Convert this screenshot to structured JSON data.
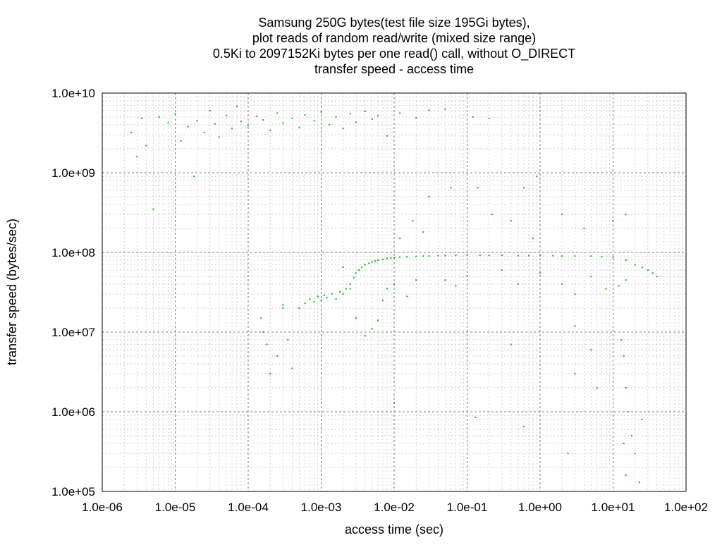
{
  "chart_data": {
    "type": "scatter",
    "title_lines": [
      "Samsung 250G bytes(test file size 195Gi bytes),",
      "plot reads of random read/write (mixed size range)",
      "0.5Ki to 2097152Ki bytes per one read() call, without O_DIRECT",
      "transfer speed - access time"
    ],
    "xlabel": "access time (sec)",
    "ylabel": "transfer speed (bytes/sec)",
    "x_scale": "log",
    "y_scale": "log",
    "xlim": [
      1e-06,
      100
    ],
    "ylim": [
      100000.0,
      10000000000.0
    ],
    "x_ticks": [
      {
        "value": 1e-06,
        "label": "1.0e-06"
      },
      {
        "value": 1e-05,
        "label": "1.0e-05"
      },
      {
        "value": 0.0001,
        "label": "1.0e-04"
      },
      {
        "value": 0.001,
        "label": "1.0e-03"
      },
      {
        "value": 0.01,
        "label": "1.0e-02"
      },
      {
        "value": 0.1,
        "label": "1.0e-01"
      },
      {
        "value": 1,
        "label": "1.0e+00"
      },
      {
        "value": 10,
        "label": "1.0e+01"
      },
      {
        "value": 100,
        "label": "1.0e+02"
      }
    ],
    "y_ticks": [
      {
        "value": 100000.0,
        "label": "1.0e+05"
      },
      {
        "value": 1000000.0,
        "label": "1.0e+06"
      },
      {
        "value": 10000000.0,
        "label": "1.0e+07"
      },
      {
        "value": 100000000.0,
        "label": "1.0e+08"
      },
      {
        "value": 1000000000.0,
        "label": "1.0e+09"
      },
      {
        "value": 10000000000.0,
        "label": "1.0e+10"
      }
    ],
    "grid": true,
    "minor_grid": true,
    "legend": "none",
    "series": [
      {
        "color": "#00c000",
        "marker": "dot",
        "points": [
          [
            2.5e-06,
            3200000000.0
          ],
          [
            3e-06,
            1600000000.0
          ],
          [
            3.5e-06,
            4800000000.0
          ],
          [
            4e-06,
            2200000000.0
          ],
          [
            5e-06,
            350000000.0
          ],
          [
            6e-06,
            5000000000.0
          ],
          [
            8e-06,
            4200000000.0
          ],
          [
            1e-05,
            5500000000.0
          ],
          [
            1.2e-05,
            2500000000.0
          ],
          [
            1.5e-05,
            3800000000.0
          ],
          [
            1.8e-05,
            900000000.0
          ],
          [
            2e-05,
            4500000000.0
          ],
          [
            2.5e-05,
            3200000000.0
          ],
          [
            3e-05,
            6000000000.0
          ],
          [
            3.5e-05,
            4100000000.0
          ],
          [
            4e-05,
            2800000000.0
          ],
          [
            5e-05,
            5200000000.0
          ],
          [
            6e-05,
            3600000000.0
          ],
          [
            7e-05,
            6800000000.0
          ],
          [
            8e-05,
            4400000000.0
          ],
          [
            0.0001,
            3900000000.0
          ],
          [
            0.00013,
            5100000000.0
          ],
          [
            0.00016,
            4600000000.0
          ],
          [
            0.0002,
            3400000000.0
          ],
          [
            0.00025,
            5600000000.0
          ],
          [
            0.0003,
            4200000000.0
          ],
          [
            0.0004,
            4800000000.0
          ],
          [
            0.0005,
            3700000000.0
          ],
          [
            0.0006,
            5300000000.0
          ],
          [
            0.0008,
            4500000000.0
          ],
          [
            0.001,
            5800000000.0
          ],
          [
            0.0013,
            4000000000.0
          ],
          [
            0.0016,
            5000000000.0
          ],
          [
            0.002,
            3600000000.0
          ],
          [
            0.0025,
            5500000000.0
          ],
          [
            0.003,
            4300000000.0
          ],
          [
            0.004,
            5900000000.0
          ],
          [
            0.005,
            4700000000.0
          ],
          [
            0.006,
            5200000000.0
          ],
          [
            0.008,
            2900000000.0
          ],
          [
            0.012,
            5600000000.0
          ],
          [
            0.02,
            4900000000.0
          ],
          [
            0.03,
            6100000000.0
          ],
          [
            0.05,
            6300000000.0
          ],
          [
            0.12,
            5000000000.0
          ],
          [
            0.2,
            4800000000.0
          ],
          [
            0.00015,
            15000000.0
          ],
          [
            0.00018,
            7000000.0
          ],
          [
            0.0002,
            3000000.0
          ],
          [
            0.00016,
            10000000.0
          ],
          [
            0.00025,
            5000000.0
          ],
          [
            0.0003,
            20000000.0
          ],
          [
            0.00035,
            8000000.0
          ],
          [
            0.0004,
            3500000.0
          ],
          [
            0.0003,
            22000000.0
          ],
          [
            0.0005,
            20000000.0
          ],
          [
            0.0006,
            23000000.0
          ],
          [
            0.0007,
            26000000.0
          ],
          [
            0.0008,
            24000000.0
          ],
          [
            0.0009,
            28000000.0
          ],
          [
            0.001,
            25000000.0
          ],
          [
            0.0011,
            29000000.0
          ],
          [
            0.0012,
            27000000.0
          ],
          [
            0.0014,
            30000000.0
          ],
          [
            0.0016,
            26000000.0
          ],
          [
            0.0018,
            32000000.0
          ],
          [
            0.002,
            30000000.0
          ],
          [
            0.0022,
            35000000.0
          ],
          [
            0.0025,
            40000000.0
          ],
          [
            0.0028,
            48000000.0
          ],
          [
            0.003,
            55000000.0
          ],
          [
            0.0033,
            60000000.0
          ],
          [
            0.0036,
            65000000.0
          ],
          [
            0.004,
            70000000.0
          ],
          [
            0.0045,
            73000000.0
          ],
          [
            0.005,
            76000000.0
          ],
          [
            0.0055,
            78000000.0
          ],
          [
            0.006,
            80000000.0
          ],
          [
            0.007,
            82000000.0
          ],
          [
            0.008,
            84000000.0
          ],
          [
            0.009,
            85000000.0
          ],
          [
            0.01,
            86000000.0
          ],
          [
            0.012,
            87000000.0
          ],
          [
            0.015,
            88000000.0
          ],
          [
            0.02,
            89000000.0
          ],
          [
            0.025,
            90000000.0
          ],
          [
            0.03,
            90000000.0
          ],
          [
            0.04,
            91000000.0
          ],
          [
            0.05,
            91000000.0
          ],
          [
            0.07,
            92000000.0
          ],
          [
            0.1,
            92000000.0
          ],
          [
            0.15,
            92000000.0
          ],
          [
            0.2,
            92000000.0
          ],
          [
            0.3,
            92000000.0
          ],
          [
            0.5,
            91000000.0
          ],
          [
            0.7,
            91000000.0
          ],
          [
            1.0,
            91000000.0
          ],
          [
            1.5,
            91000000.0
          ],
          [
            2.0,
            90000000.0
          ],
          [
            3.0,
            90000000.0
          ],
          [
            5.0,
            90000000.0
          ],
          [
            7.0,
            88000000.0
          ],
          [
            10.0,
            87000000.0
          ],
          [
            15.0,
            80000000.0
          ],
          [
            20.0,
            70000000.0
          ],
          [
            25.0,
            65000000.0
          ],
          [
            30.0,
            60000000.0
          ],
          [
            35.0,
            55000000.0
          ],
          [
            40.0,
            50000000.0
          ],
          [
            0.002,
            65000000.0
          ],
          [
            0.0025,
            35000000.0
          ],
          [
            0.003,
            15000000.0
          ],
          [
            0.004,
            9000000.0
          ],
          [
            0.005,
            11000000.0
          ],
          [
            0.006,
            14000000.0
          ],
          [
            0.007,
            25000000.0
          ],
          [
            0.008,
            35000000.0
          ],
          [
            0.01,
            40000000.0
          ],
          [
            0.015,
            28000000.0
          ],
          [
            0.02,
            45000000.0
          ],
          [
            0.012,
            150000000.0
          ],
          [
            0.018,
            250000000.0
          ],
          [
            0.025,
            180000000.0
          ],
          [
            0.03,
            500000000.0
          ],
          [
            0.06,
            650000000.0
          ],
          [
            0.14,
            650000000.0
          ],
          [
            0.22,
            300000000.0
          ],
          [
            0.4,
            250000000.0
          ],
          [
            0.6,
            650000000.0
          ],
          [
            0.8,
            150000000.0
          ],
          [
            0.9,
            900000000.0
          ],
          [
            2.0,
            300000000.0
          ],
          [
            4.0,
            200000000.0
          ],
          [
            0.5,
            40000000.0
          ],
          [
            1.0,
            55000000.0
          ],
          [
            2.0,
            40000000.0
          ],
          [
            3.0,
            30000000.0
          ],
          [
            5.0,
            50000000.0
          ],
          [
            8.0,
            35000000.0
          ],
          [
            12.0,
            38000000.0
          ],
          [
            15.0,
            45000000.0
          ],
          [
            10.0,
            250000000.0
          ],
          [
            15.0,
            300000000.0
          ],
          [
            0.1,
            50000000.0
          ],
          [
            0.3,
            60000000.0
          ],
          [
            0.05,
            45000000.0
          ],
          [
            0.07,
            38000000.0
          ],
          [
            0.4,
            7000000.0
          ],
          [
            3.0,
            12000000.0
          ],
          [
            5.0,
            6000000.0
          ],
          [
            6.0,
            2000000.0
          ],
          [
            3.0,
            3000000.0
          ],
          [
            13.0,
            8000000.0
          ],
          [
            14.0,
            5000000.0
          ],
          [
            15.0,
            2000000.0
          ],
          [
            16.0,
            1000000.0
          ],
          [
            14.0,
            400000.0
          ],
          [
            18.0,
            500000.0
          ],
          [
            20.0,
            300000.0
          ],
          [
            23.0,
            130000.0
          ],
          [
            25.0,
            800000.0
          ],
          [
            15.0,
            160000.0
          ],
          [
            2.4,
            300000.0
          ],
          [
            0.13,
            850000.0
          ],
          [
            0.6,
            650000.0
          ],
          [
            0.01,
            1300000.0
          ]
        ]
      }
    ]
  }
}
